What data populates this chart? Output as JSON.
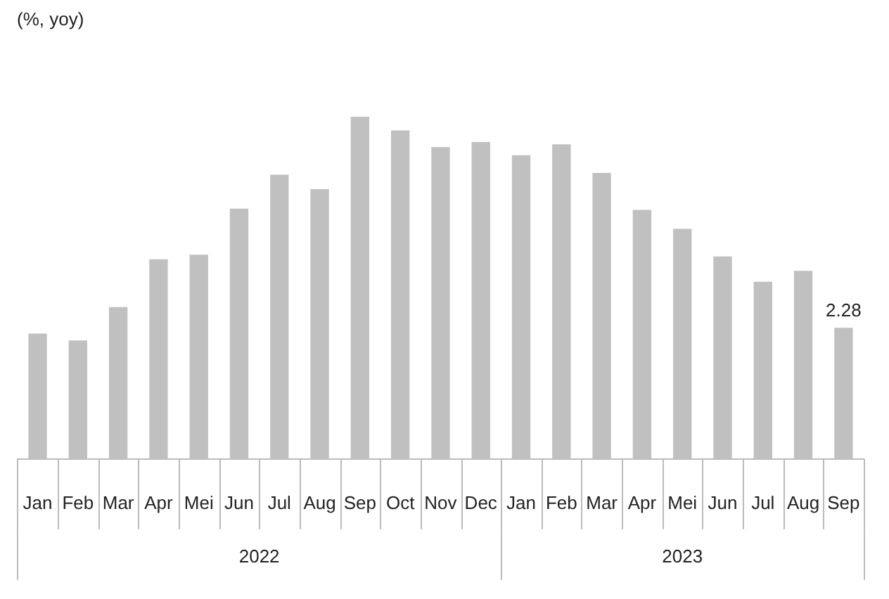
{
  "chart_data": {
    "type": "bar",
    "categories": [
      "Jan",
      "Feb",
      "Mar",
      "Apr",
      "Mei",
      "Jun",
      "Jul",
      "Aug",
      "Sep",
      "Oct",
      "Nov",
      "Dec",
      "Jan",
      "Feb",
      "Mar",
      "Apr",
      "Mei",
      "Jun",
      "Jul",
      "Aug",
      "Sep"
    ],
    "values": [
      2.18,
      2.06,
      2.64,
      3.47,
      3.55,
      4.35,
      4.94,
      4.69,
      5.95,
      5.71,
      5.42,
      5.51,
      5.28,
      5.47,
      4.97,
      4.33,
      4.0,
      3.52,
      3.08,
      3.27,
      2.28
    ],
    "value_labels": [
      null,
      null,
      null,
      null,
      null,
      null,
      null,
      null,
      null,
      null,
      null,
      null,
      null,
      null,
      null,
      null,
      null,
      null,
      null,
      null,
      "2.28"
    ],
    "color": "#c0c0c0",
    "annotations": [
      "(%, yoy)",
      "2022",
      "2023"
    ],
    "grid": false,
    "legend": false
  }
}
